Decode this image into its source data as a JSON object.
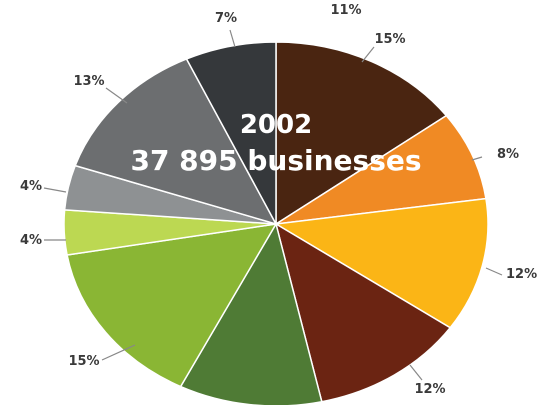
{
  "chart_data": {
    "type": "pie",
    "center_year": "2002",
    "center_caption": "37 895 businesses",
    "slices": [
      {
        "label": "15%",
        "value": 15,
        "color": "#4a2511"
      },
      {
        "label": "8%",
        "value": 8,
        "color": "#f08a24"
      },
      {
        "label": "12%",
        "value": 12,
        "color": "#fbb516"
      },
      {
        "label": "12%",
        "value": 12,
        "color": "#6b2412"
      },
      {
        "label": "",
        "value": 11,
        "color": "#4f7b35"
      },
      {
        "label": "15%",
        "value": 15,
        "color": "#8ab634"
      },
      {
        "label": "4%",
        "value": 4,
        "color": "#bcd852"
      },
      {
        "label": "4%",
        "value": 4,
        "color": "#8e9193"
      },
      {
        "label": "13%",
        "value": 13,
        "color": "#6c6e70"
      },
      {
        "label": "7%",
        "value": 7,
        "color": "#35383b"
      }
    ],
    "extra_labels": [
      {
        "label": "11%"
      }
    ]
  }
}
